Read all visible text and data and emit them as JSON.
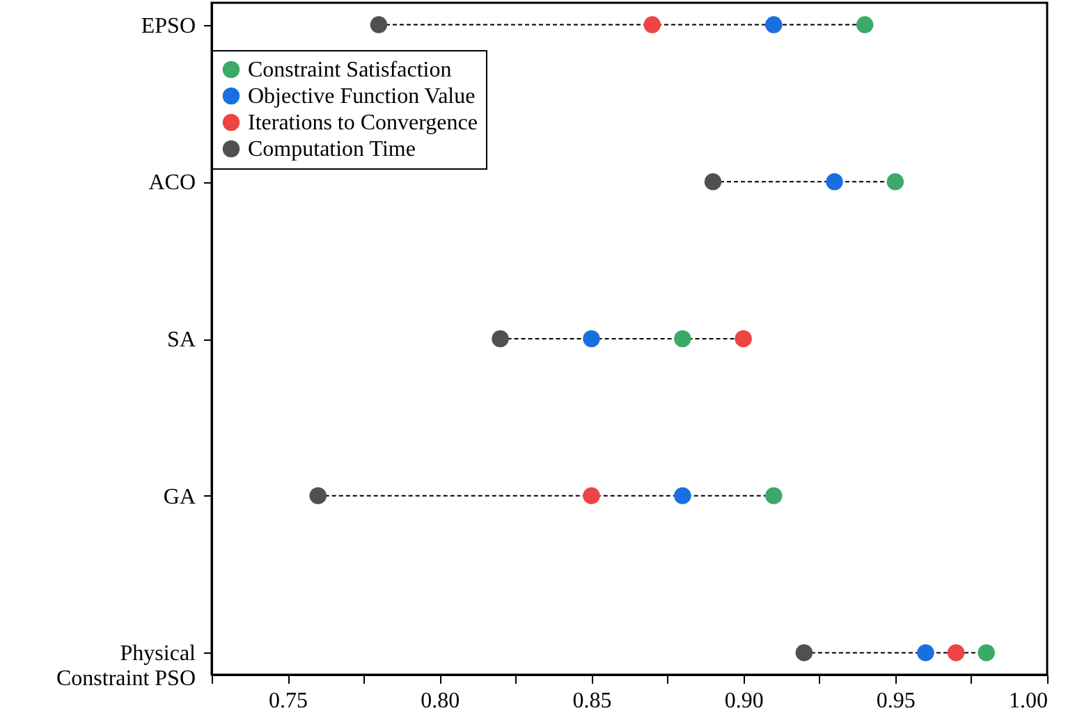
{
  "chart_data": {
    "type": "scatter",
    "orientation": "horizontal",
    "categories": [
      "EPSO",
      "ACO",
      "SA",
      "GA",
      "Physical Constraint PSO"
    ],
    "series": [
      {
        "name": "Constraint Satisfaction",
        "color": "#3aaa66",
        "values": [
          0.94,
          0.95,
          0.88,
          0.91,
          0.98
        ]
      },
      {
        "name": "Objective Function Value",
        "color": "#1a6fe0",
        "values": [
          0.91,
          0.93,
          0.85,
          0.88,
          0.96
        ]
      },
      {
        "name": "Iterations to Convergence",
        "color": "#ee4444",
        "values": [
          0.87,
          null,
          0.9,
          0.85,
          0.97
        ]
      },
      {
        "name": "Computation Time",
        "color": "#505050",
        "values": [
          0.78,
          0.89,
          0.82,
          0.76,
          0.92
        ]
      }
    ],
    "xlim": [
      0.725,
      1.0
    ],
    "xticks": [
      {
        "value": 0.725,
        "label": null
      },
      0.75,
      {
        "value": 0.775,
        "label": null
      },
      {
        "value": 0.8,
        "label": "0.80"
      },
      {
        "value": 0.825,
        "label": null
      },
      0.85,
      {
        "value": 0.875,
        "label": null
      },
      {
        "value": 0.9,
        "label": "0.90"
      },
      {
        "value": 0.925,
        "label": null
      },
      0.95,
      {
        "value": 0.975,
        "label": null
      },
      {
        "value": 1.0,
        "label": "1.00"
      }
    ],
    "legend": "top left",
    "grid": false,
    "marker": "circle"
  }
}
